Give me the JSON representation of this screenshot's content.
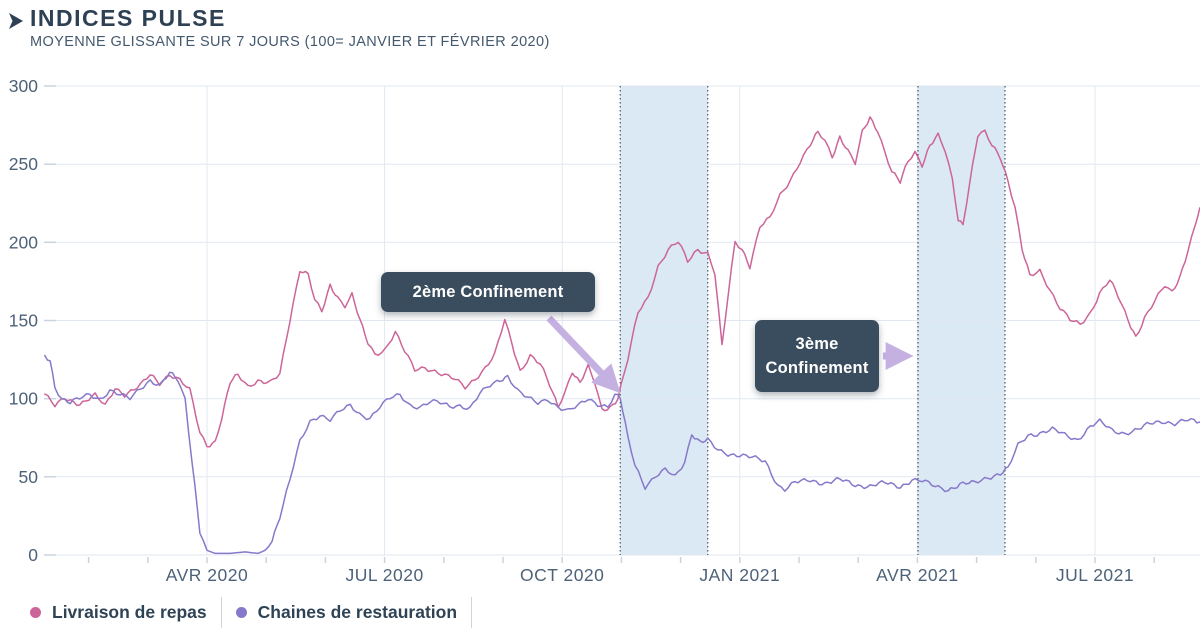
{
  "header": {
    "title": "INDICES PULSE",
    "subtitle": "MOYENNE GLISSANTE SUR 7 JOURS (100= JANVIER ET FÉVRIER 2020)"
  },
  "colors": {
    "title_text": "#2e4154",
    "axis_text": "#4d6278",
    "grid": "#e2e8f2",
    "tick": "#c9d4e0",
    "band_fill": "#dbe9f4",
    "band_edge": "#26323f",
    "annotation_bg": "#3a4d5e",
    "annotation_text": "#ffffff",
    "arrow": "#c5b1e1",
    "series_livraison": "#cc6598",
    "series_chaines": "#8679cb"
  },
  "annotations": [
    {
      "id": "confinement-2",
      "label": "2ème Confinement"
    },
    {
      "id": "confinement-3",
      "label": "3ème Confinement"
    }
  ],
  "legend": {
    "items": [
      {
        "label": "Livraison de repas",
        "color": "#cc6598"
      },
      {
        "label": "Chaines de restauration",
        "color": "#8679cb"
      }
    ]
  },
  "chart_data": {
    "type": "line",
    "title": "INDICES PULSE",
    "subtitle": "MOYENNE GLISSANTE SUR 7 JOURS (100= JANVIER ET FÉVRIER 2020)",
    "x_unit": "months since 2020-01-01 (3 = AVR 2020)",
    "xlim": [
      0.26,
      19.77
    ],
    "ylim": [
      0,
      300
    ],
    "grid": true,
    "legend_position": "bottom-left",
    "yticks": [
      0,
      50,
      100,
      150,
      200,
      250,
      300
    ],
    "xticks": [
      {
        "m": 3,
        "label": "AVR 2020"
      },
      {
        "m": 6,
        "label": "JUL 2020"
      },
      {
        "m": 9,
        "label": "OCT 2020"
      },
      {
        "m": 12,
        "label": "JAN 2021"
      },
      {
        "m": 15,
        "label": "AVR 2021"
      },
      {
        "m": 18,
        "label": "JUL 2021"
      }
    ],
    "bands": [
      {
        "label": "2ème Confinement",
        "from_m": 9.98,
        "to_m": 11.46
      },
      {
        "label": "3ème Confinement",
        "from_m": 15.01,
        "to_m": 16.48
      }
    ],
    "series": [
      {
        "name": "Livraison de repas",
        "color": "#cc6598",
        "points": [
          [
            0.26,
            103
          ],
          [
            0.43,
            95
          ],
          [
            0.6,
            100
          ],
          [
            0.85,
            97
          ],
          [
            1.11,
            102
          ],
          [
            1.28,
            95
          ],
          [
            1.45,
            107
          ],
          [
            1.61,
            103
          ],
          [
            1.87,
            108
          ],
          [
            2.04,
            115
          ],
          [
            2.2,
            110
          ],
          [
            2.37,
            116
          ],
          [
            2.54,
            112
          ],
          [
            2.71,
            105
          ],
          [
            2.88,
            78
          ],
          [
            3.0,
            70
          ],
          [
            3.14,
            73
          ],
          [
            3.25,
            88
          ],
          [
            3.39,
            110
          ],
          [
            3.52,
            115
          ],
          [
            3.69,
            108
          ],
          [
            3.86,
            112
          ],
          [
            4.06,
            110
          ],
          [
            4.23,
            115
          ],
          [
            4.4,
            150
          ],
          [
            4.57,
            183
          ],
          [
            4.71,
            180
          ],
          [
            4.82,
            163
          ],
          [
            4.94,
            155
          ],
          [
            5.08,
            172
          ],
          [
            5.21,
            165
          ],
          [
            5.33,
            160
          ],
          [
            5.45,
            167
          ],
          [
            5.58,
            150
          ],
          [
            5.72,
            135
          ],
          [
            5.84,
            128
          ],
          [
            6.01,
            132
          ],
          [
            6.18,
            143
          ],
          [
            6.34,
            130
          ],
          [
            6.51,
            118
          ],
          [
            6.68,
            120
          ],
          [
            6.85,
            118
          ],
          [
            7.02,
            115
          ],
          [
            7.19,
            112
          ],
          [
            7.36,
            107
          ],
          [
            7.53,
            113
          ],
          [
            7.7,
            120
          ],
          [
            7.86,
            128
          ],
          [
            8.03,
            150
          ],
          [
            8.15,
            135
          ],
          [
            8.29,
            118
          ],
          [
            8.46,
            128
          ],
          [
            8.63,
            122
          ],
          [
            8.79,
            108
          ],
          [
            8.93,
            95
          ],
          [
            9.05,
            105
          ],
          [
            9.17,
            118
          ],
          [
            9.3,
            110
          ],
          [
            9.44,
            120
          ],
          [
            9.55,
            110
          ],
          [
            9.67,
            93
          ],
          [
            9.81,
            95
          ],
          [
            9.94,
            100
          ],
          [
            10.11,
            125
          ],
          [
            10.28,
            155
          ],
          [
            10.45,
            165
          ],
          [
            10.62,
            185
          ],
          [
            10.79,
            195
          ],
          [
            10.96,
            200
          ],
          [
            11.12,
            188
          ],
          [
            11.29,
            196
          ],
          [
            11.46,
            193
          ],
          [
            11.58,
            180
          ],
          [
            11.7,
            133
          ],
          [
            11.8,
            165
          ],
          [
            11.92,
            200
          ],
          [
            12.04,
            196
          ],
          [
            12.17,
            185
          ],
          [
            12.34,
            210
          ],
          [
            12.51,
            215
          ],
          [
            12.68,
            230
          ],
          [
            12.85,
            240
          ],
          [
            13.02,
            252
          ],
          [
            13.19,
            262
          ],
          [
            13.32,
            270
          ],
          [
            13.44,
            265
          ],
          [
            13.56,
            255
          ],
          [
            13.69,
            268
          ],
          [
            13.83,
            258
          ],
          [
            13.95,
            250
          ],
          [
            14.07,
            270
          ],
          [
            14.2,
            280
          ],
          [
            14.33,
            272
          ],
          [
            14.45,
            258
          ],
          [
            14.57,
            245
          ],
          [
            14.71,
            238
          ],
          [
            14.84,
            252
          ],
          [
            14.96,
            258
          ],
          [
            15.08,
            250
          ],
          [
            15.21,
            262
          ],
          [
            15.35,
            268
          ],
          [
            15.47,
            258
          ],
          [
            15.59,
            240
          ],
          [
            15.69,
            215
          ],
          [
            15.77,
            212
          ],
          [
            15.89,
            240
          ],
          [
            16.02,
            268
          ],
          [
            16.14,
            270
          ],
          [
            16.26,
            262
          ],
          [
            16.4,
            255
          ],
          [
            16.53,
            240
          ],
          [
            16.65,
            222
          ],
          [
            16.77,
            195
          ],
          [
            16.9,
            178
          ],
          [
            17.07,
            182
          ],
          [
            17.24,
            170
          ],
          [
            17.41,
            158
          ],
          [
            17.58,
            150
          ],
          [
            17.75,
            147
          ],
          [
            17.92,
            155
          ],
          [
            18.08,
            168
          ],
          [
            18.25,
            176
          ],
          [
            18.39,
            165
          ],
          [
            18.56,
            150
          ],
          [
            18.69,
            140
          ],
          [
            18.84,
            152
          ],
          [
            19.01,
            162
          ],
          [
            19.18,
            172
          ],
          [
            19.3,
            168
          ],
          [
            19.43,
            178
          ],
          [
            19.57,
            195
          ],
          [
            19.69,
            210
          ],
          [
            19.77,
            222
          ]
        ]
      },
      {
        "name": "Chaines de restauration",
        "color": "#8679cb",
        "points": [
          [
            0.26,
            127
          ],
          [
            0.35,
            125
          ],
          [
            0.43,
            108
          ],
          [
            0.55,
            100
          ],
          [
            0.69,
            97
          ],
          [
            0.85,
            100
          ],
          [
            1.02,
            103
          ],
          [
            1.19,
            100
          ],
          [
            1.36,
            105
          ],
          [
            1.53,
            102
          ],
          [
            1.7,
            100
          ],
          [
            1.87,
            107
          ],
          [
            2.04,
            112
          ],
          [
            2.2,
            108
          ],
          [
            2.37,
            116
          ],
          [
            2.51,
            112
          ],
          [
            2.63,
            100
          ],
          [
            2.75,
            60
          ],
          [
            2.88,
            15
          ],
          [
            3.0,
            3
          ],
          [
            3.14,
            1
          ],
          [
            3.39,
            1
          ],
          [
            3.64,
            2
          ],
          [
            3.86,
            1
          ],
          [
            3.98,
            3
          ],
          [
            4.1,
            10
          ],
          [
            4.23,
            25
          ],
          [
            4.4,
            48
          ],
          [
            4.57,
            72
          ],
          [
            4.74,
            85
          ],
          [
            4.91,
            90
          ],
          [
            5.08,
            87
          ],
          [
            5.25,
            92
          ],
          [
            5.42,
            95
          ],
          [
            5.58,
            90
          ],
          [
            5.75,
            88
          ],
          [
            5.92,
            95
          ],
          [
            6.09,
            100
          ],
          [
            6.26,
            102
          ],
          [
            6.43,
            96
          ],
          [
            6.6,
            95
          ],
          [
            6.77,
            98
          ],
          [
            6.94,
            97
          ],
          [
            7.1,
            95
          ],
          [
            7.27,
            96
          ],
          [
            7.44,
            94
          ],
          [
            7.61,
            103
          ],
          [
            7.78,
            108
          ],
          [
            7.95,
            112
          ],
          [
            8.08,
            115
          ],
          [
            8.25,
            105
          ],
          [
            8.42,
            100
          ],
          [
            8.59,
            97
          ],
          [
            8.76,
            100
          ],
          [
            8.93,
            95
          ],
          [
            9.1,
            92
          ],
          [
            9.27,
            95
          ],
          [
            9.44,
            100
          ],
          [
            9.6,
            97
          ],
          [
            9.77,
            95
          ],
          [
            9.89,
            102
          ],
          [
            9.98,
            100
          ],
          [
            10.11,
            75
          ],
          [
            10.23,
            58
          ],
          [
            10.4,
            44
          ],
          [
            10.57,
            50
          ],
          [
            10.74,
            54
          ],
          [
            10.91,
            50
          ],
          [
            11.07,
            60
          ],
          [
            11.19,
            78
          ],
          [
            11.33,
            72
          ],
          [
            11.46,
            73
          ],
          [
            11.63,
            67
          ],
          [
            11.8,
            65
          ],
          [
            12.0,
            64
          ],
          [
            12.21,
            62
          ],
          [
            12.43,
            60
          ],
          [
            12.64,
            45
          ],
          [
            12.76,
            42
          ],
          [
            12.93,
            46
          ],
          [
            13.19,
            48
          ],
          [
            13.44,
            46
          ],
          [
            13.69,
            48
          ],
          [
            13.95,
            45
          ],
          [
            14.2,
            44
          ],
          [
            14.45,
            46
          ],
          [
            14.71,
            44
          ],
          [
            14.91,
            48
          ],
          [
            15.08,
            47
          ],
          [
            15.3,
            44
          ],
          [
            15.52,
            42
          ],
          [
            15.72,
            45
          ],
          [
            15.97,
            46
          ],
          [
            16.19,
            50
          ],
          [
            16.4,
            52
          ],
          [
            16.53,
            55
          ],
          [
            16.7,
            70
          ],
          [
            16.87,
            77
          ],
          [
            17.07,
            78
          ],
          [
            17.28,
            80
          ],
          [
            17.49,
            77
          ],
          [
            17.71,
            74
          ],
          [
            17.92,
            82
          ],
          [
            18.08,
            85
          ],
          [
            18.29,
            80
          ],
          [
            18.51,
            78
          ],
          [
            18.73,
            80
          ],
          [
            18.93,
            84
          ],
          [
            19.13,
            86
          ],
          [
            19.35,
            84
          ],
          [
            19.57,
            86
          ],
          [
            19.77,
            85
          ]
        ]
      }
    ]
  }
}
